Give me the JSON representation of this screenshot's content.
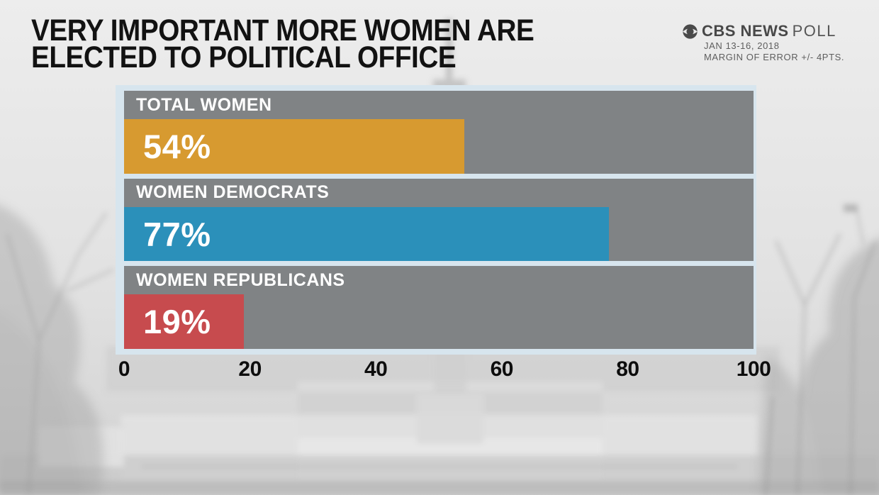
{
  "header": {
    "title_line1": "VERY IMPORTANT MORE WOMEN ARE",
    "title_line2": "ELECTED TO POLITICAL OFFICE"
  },
  "branding": {
    "logo_icon": "cbs-eye-icon",
    "network": "CBS NEWS",
    "product": "POLL",
    "date": "JAN 13-16, 2018",
    "margin_of_error": "MARGIN OF ERROR +/- 4PTS."
  },
  "chart_data": {
    "type": "bar",
    "orientation": "horizontal",
    "title": "VERY IMPORTANT MORE WOMEN ARE ELECTED TO POLITICAL OFFICE",
    "source": "CBS NEWS POLL",
    "poll_dates": "JAN 13-16, 2018",
    "margin_of_error": "+/- 4PTS.",
    "categories": [
      "TOTAL WOMEN",
      "WOMEN DEMOCRATS",
      "WOMEN REPUBLICANS"
    ],
    "values": [
      54,
      77,
      19
    ],
    "value_labels": [
      "54%",
      "77%",
      "19%"
    ],
    "bar_colors": [
      "#d79a30",
      "#2b90ba",
      "#c74b4e"
    ],
    "xlim": [
      0,
      100
    ],
    "x_ticks": [
      "0",
      "20",
      "40",
      "60",
      "80",
      "100"
    ],
    "grid": false,
    "legend": false
  },
  "colors": {
    "panel_overlay_gray": "#686868",
    "chart_backdrop_blue": "#d7e5ee",
    "title_text": "#121212",
    "axis_text": "#0d0d0d",
    "brand_text": "#4a4a4a"
  }
}
